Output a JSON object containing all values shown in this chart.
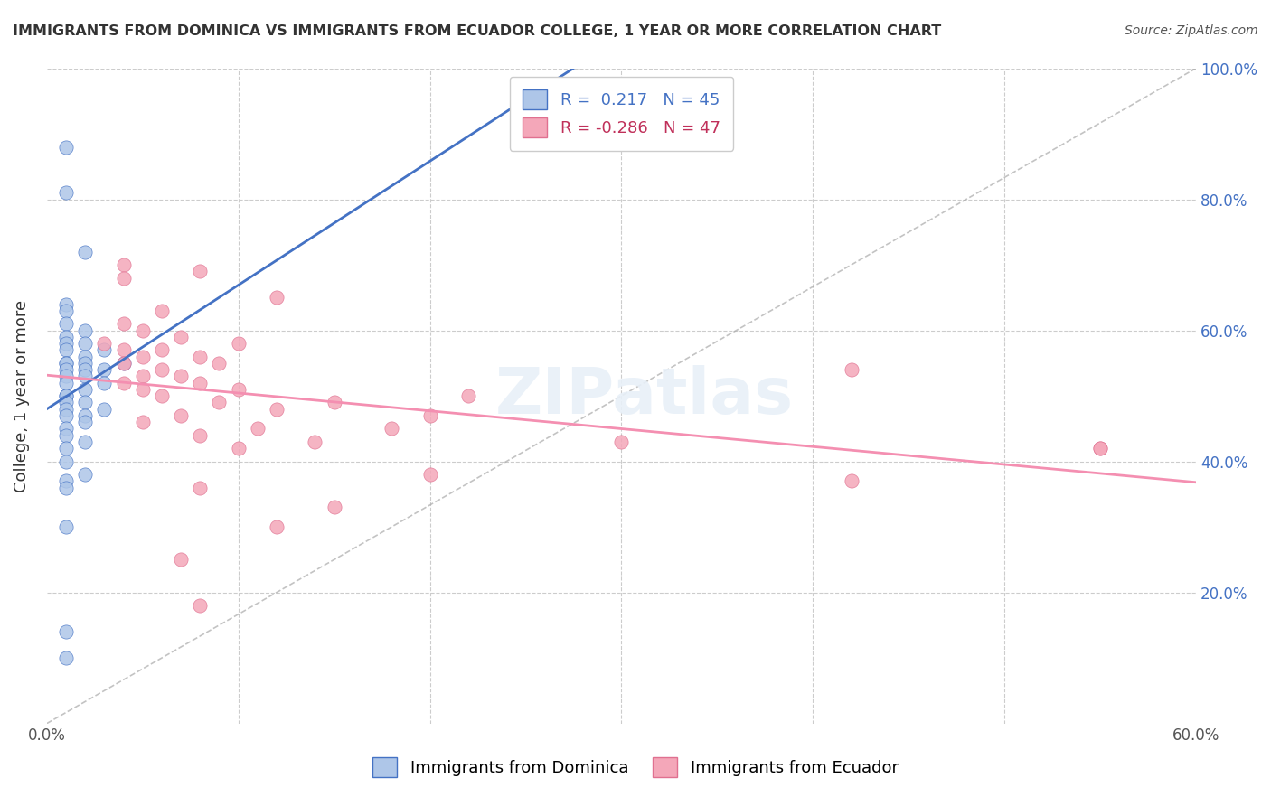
{
  "title": "IMMIGRANTS FROM DOMINICA VS IMMIGRANTS FROM ECUADOR COLLEGE, 1 YEAR OR MORE CORRELATION CHART",
  "source": "Source: ZipAtlas.com",
  "xlabel": "",
  "ylabel": "College, 1 year or more",
  "xlim": [
    0.0,
    0.6
  ],
  "ylim": [
    0.0,
    1.0
  ],
  "xticks": [
    0.0,
    0.1,
    0.2,
    0.3,
    0.4,
    0.5,
    0.6
  ],
  "xticklabels": [
    "0.0%",
    "",
    "",
    "",
    "",
    "",
    "60.0%"
  ],
  "yticks_right": [
    0.0,
    0.2,
    0.4,
    0.6,
    0.8,
    1.0
  ],
  "yticklabels_right": [
    "",
    "20.0%",
    "40.0%",
    "60.0%",
    "80.0%",
    "100.0%"
  ],
  "R_blue": 0.217,
  "N_blue": 45,
  "R_pink": -0.286,
  "N_pink": 47,
  "scatter_blue": [
    [
      0.01,
      0.88
    ],
    [
      0.01,
      0.81
    ],
    [
      0.02,
      0.72
    ],
    [
      0.01,
      0.64
    ],
    [
      0.01,
      0.63
    ],
    [
      0.01,
      0.61
    ],
    [
      0.02,
      0.6
    ],
    [
      0.01,
      0.59
    ],
    [
      0.01,
      0.58
    ],
    [
      0.02,
      0.58
    ],
    [
      0.03,
      0.57
    ],
    [
      0.01,
      0.57
    ],
    [
      0.02,
      0.56
    ],
    [
      0.01,
      0.55
    ],
    [
      0.02,
      0.55
    ],
    [
      0.01,
      0.55
    ],
    [
      0.03,
      0.54
    ],
    [
      0.01,
      0.54
    ],
    [
      0.02,
      0.54
    ],
    [
      0.01,
      0.53
    ],
    [
      0.02,
      0.53
    ],
    [
      0.01,
      0.52
    ],
    [
      0.03,
      0.52
    ],
    [
      0.02,
      0.51
    ],
    [
      0.01,
      0.5
    ],
    [
      0.01,
      0.5
    ],
    [
      0.02,
      0.49
    ],
    [
      0.01,
      0.49
    ],
    [
      0.03,
      0.48
    ],
    [
      0.01,
      0.48
    ],
    [
      0.02,
      0.47
    ],
    [
      0.01,
      0.47
    ],
    [
      0.02,
      0.46
    ],
    [
      0.01,
      0.45
    ],
    [
      0.01,
      0.44
    ],
    [
      0.02,
      0.43
    ],
    [
      0.01,
      0.42
    ],
    [
      0.01,
      0.4
    ],
    [
      0.02,
      0.38
    ],
    [
      0.01,
      0.37
    ],
    [
      0.01,
      0.36
    ],
    [
      0.01,
      0.3
    ],
    [
      0.01,
      0.14
    ],
    [
      0.01,
      0.1
    ],
    [
      0.04,
      0.55
    ]
  ],
  "scatter_pink": [
    [
      0.04,
      0.7
    ],
    [
      0.08,
      0.69
    ],
    [
      0.04,
      0.68
    ],
    [
      0.12,
      0.65
    ],
    [
      0.06,
      0.63
    ],
    [
      0.04,
      0.61
    ],
    [
      0.05,
      0.6
    ],
    [
      0.07,
      0.59
    ],
    [
      0.03,
      0.58
    ],
    [
      0.1,
      0.58
    ],
    [
      0.04,
      0.57
    ],
    [
      0.06,
      0.57
    ],
    [
      0.05,
      0.56
    ],
    [
      0.08,
      0.56
    ],
    [
      0.04,
      0.55
    ],
    [
      0.09,
      0.55
    ],
    [
      0.06,
      0.54
    ],
    [
      0.05,
      0.53
    ],
    [
      0.07,
      0.53
    ],
    [
      0.04,
      0.52
    ],
    [
      0.08,
      0.52
    ],
    [
      0.1,
      0.51
    ],
    [
      0.05,
      0.51
    ],
    [
      0.06,
      0.5
    ],
    [
      0.22,
      0.5
    ],
    [
      0.09,
      0.49
    ],
    [
      0.15,
      0.49
    ],
    [
      0.12,
      0.48
    ],
    [
      0.07,
      0.47
    ],
    [
      0.2,
      0.47
    ],
    [
      0.05,
      0.46
    ],
    [
      0.11,
      0.45
    ],
    [
      0.18,
      0.45
    ],
    [
      0.08,
      0.44
    ],
    [
      0.3,
      0.43
    ],
    [
      0.14,
      0.43
    ],
    [
      0.1,
      0.42
    ],
    [
      0.55,
      0.42
    ],
    [
      0.2,
      0.38
    ],
    [
      0.42,
      0.37
    ],
    [
      0.08,
      0.36
    ],
    [
      0.15,
      0.33
    ],
    [
      0.12,
      0.3
    ],
    [
      0.55,
      0.42
    ],
    [
      0.07,
      0.25
    ],
    [
      0.08,
      0.18
    ],
    [
      0.42,
      0.54
    ]
  ],
  "color_blue": "#aec6e8",
  "color_pink": "#f4a7b9",
  "line_color_blue": "#4472c4",
  "line_color_pink": "#f48fb1",
  "text_color_blue": "#4472c4",
  "text_color_pink": "#c0305a",
  "legend_label_blue": "Immigrants from Dominica",
  "legend_label_pink": "Immigrants from Ecuador",
  "watermark": "ZIPatlas",
  "background_color": "#ffffff",
  "grid_color": "#cccccc"
}
